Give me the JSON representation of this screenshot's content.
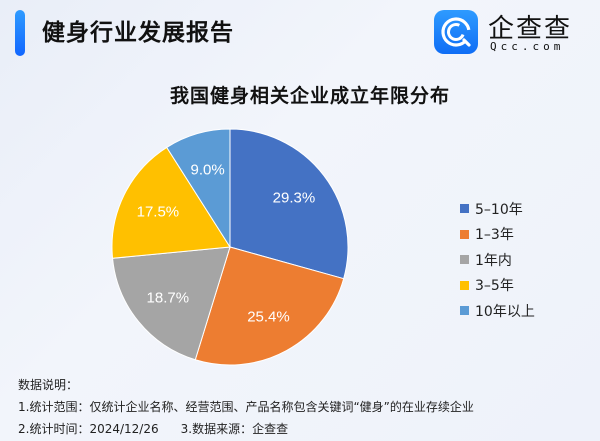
{
  "header": {
    "title": "健身行业发展报告",
    "logo_cn": "企查查",
    "logo_en": "Qcc.com",
    "accent_color": "#1a7dff"
  },
  "chart_data": {
    "type": "pie",
    "title": "我国健身相关企业成立年限分布",
    "categories": [
      "5-10年",
      "1-3年",
      "1年内",
      "3-5年",
      "10年以上"
    ],
    "values": [
      29.3,
      25.4,
      18.7,
      17.5,
      9.0
    ],
    "labels": [
      "29.3%",
      "25.4%",
      "18.7%",
      "17.5%",
      "9.0%"
    ],
    "colors": [
      "#4472c4",
      "#ed7d31",
      "#a5a5a5",
      "#ffc000",
      "#5b9bd5"
    ],
    "unit": "%",
    "start_angle": "12 o'clock, clockwise",
    "legend_position": "right"
  },
  "legend": {
    "items": [
      {
        "label": "5–10年",
        "color": "#4472c4"
      },
      {
        "label": "1–3年",
        "color": "#ed7d31"
      },
      {
        "label": "1年内",
        "color": "#a5a5a5"
      },
      {
        "label": "3–5年",
        "color": "#ffc000"
      },
      {
        "label": "10年以上",
        "color": "#5b9bd5"
      }
    ]
  },
  "notes": {
    "heading": "数据说明：",
    "line1": "1.统计范围：仅统计企业名称、经营范围、产品名称包含关键词“健身”的在业存续企业",
    "line2a": "2.统计时间：2024/12/26",
    "line2b": "3.数据来源：企查查"
  }
}
